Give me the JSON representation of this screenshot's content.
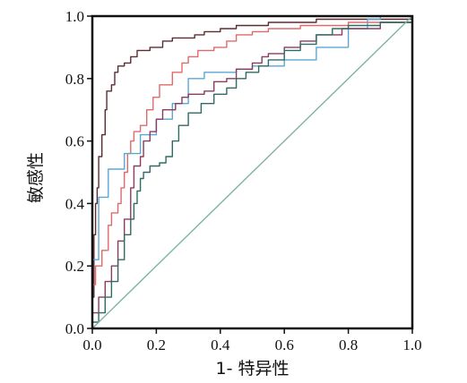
{
  "chart_data": {
    "type": "line",
    "title": "",
    "xlabel": "1- 特异性",
    "ylabel": "敏感性",
    "xlim": [
      0,
      1
    ],
    "ylim": [
      0,
      1
    ],
    "x_ticks": [
      "0.0",
      "0.2",
      "0.4",
      "0.6",
      "0.8",
      "1.0"
    ],
    "y_ticks": [
      "0.0",
      "0.2",
      "0.4",
      "0.6",
      "0.8",
      "1.0"
    ],
    "grid": false,
    "legend": "none",
    "series": [
      {
        "color": "#5a2d33",
        "points": [
          [
            0,
            0
          ],
          [
            0,
            0.1
          ],
          [
            0.005,
            0.3
          ],
          [
            0.01,
            0.4
          ],
          [
            0.015,
            0.45
          ],
          [
            0.02,
            0.55
          ],
          [
            0.03,
            0.62
          ],
          [
            0.04,
            0.7
          ],
          [
            0.045,
            0.76
          ],
          [
            0.06,
            0.78
          ],
          [
            0.07,
            0.82
          ],
          [
            0.08,
            0.84
          ],
          [
            0.1,
            0.85
          ],
          [
            0.12,
            0.87
          ],
          [
            0.14,
            0.89
          ],
          [
            0.18,
            0.9
          ],
          [
            0.22,
            0.92
          ],
          [
            0.25,
            0.93
          ],
          [
            0.32,
            0.94
          ],
          [
            0.35,
            0.95
          ],
          [
            0.4,
            0.96
          ],
          [
            0.45,
            0.97
          ],
          [
            0.55,
            0.98
          ],
          [
            0.7,
            0.99
          ],
          [
            1,
            1
          ]
        ]
      },
      {
        "color": "#e06a6a",
        "points": [
          [
            0,
            0
          ],
          [
            0,
            0.14
          ],
          [
            0.01,
            0.2
          ],
          [
            0.03,
            0.25
          ],
          [
            0.05,
            0.33
          ],
          [
            0.06,
            0.37
          ],
          [
            0.08,
            0.4
          ],
          [
            0.09,
            0.45
          ],
          [
            0.1,
            0.5
          ],
          [
            0.11,
            0.56
          ],
          [
            0.12,
            0.6
          ],
          [
            0.13,
            0.63
          ],
          [
            0.15,
            0.65
          ],
          [
            0.17,
            0.7
          ],
          [
            0.19,
            0.74
          ],
          [
            0.21,
            0.78
          ],
          [
            0.25,
            0.82
          ],
          [
            0.28,
            0.85
          ],
          [
            0.3,
            0.87
          ],
          [
            0.33,
            0.89
          ],
          [
            0.38,
            0.9
          ],
          [
            0.42,
            0.92
          ],
          [
            0.45,
            0.94
          ],
          [
            0.5,
            0.95
          ],
          [
            0.55,
            0.96
          ],
          [
            0.65,
            0.97
          ],
          [
            0.8,
            0.98
          ],
          [
            1,
            1
          ]
        ]
      },
      {
        "color": "#5ba7d4",
        "points": [
          [
            0,
            0
          ],
          [
            0,
            0.22
          ],
          [
            0.02,
            0.42
          ],
          [
            0.05,
            0.51
          ],
          [
            0.1,
            0.56
          ],
          [
            0.15,
            0.62
          ],
          [
            0.2,
            0.67
          ],
          [
            0.25,
            0.72
          ],
          [
            0.3,
            0.8
          ],
          [
            0.35,
            0.82
          ],
          [
            0.45,
            0.83
          ],
          [
            0.5,
            0.84
          ],
          [
            0.6,
            0.86
          ],
          [
            0.7,
            0.9
          ],
          [
            0.8,
            0.96
          ],
          [
            0.86,
            0.99
          ],
          [
            0.9,
            1
          ],
          [
            1,
            1
          ]
        ]
      },
      {
        "color": "#8b3a60",
        "points": [
          [
            0,
            0
          ],
          [
            0,
            0.05
          ],
          [
            0.02,
            0.1
          ],
          [
            0.04,
            0.15
          ],
          [
            0.06,
            0.2
          ],
          [
            0.08,
            0.28
          ],
          [
            0.1,
            0.35
          ],
          [
            0.12,
            0.45
          ],
          [
            0.13,
            0.52
          ],
          [
            0.15,
            0.55
          ],
          [
            0.16,
            0.6
          ],
          [
            0.18,
            0.63
          ],
          [
            0.2,
            0.67
          ],
          [
            0.22,
            0.7
          ],
          [
            0.26,
            0.72
          ],
          [
            0.28,
            0.74
          ],
          [
            0.3,
            0.75
          ],
          [
            0.35,
            0.76
          ],
          [
            0.38,
            0.79
          ],
          [
            0.42,
            0.8
          ],
          [
            0.45,
            0.83
          ],
          [
            0.5,
            0.85
          ],
          [
            0.53,
            0.87
          ],
          [
            0.55,
            0.88
          ],
          [
            0.6,
            0.9
          ],
          [
            0.65,
            0.92
          ],
          [
            0.7,
            0.94
          ],
          [
            0.78,
            0.96
          ],
          [
            0.9,
            0.98
          ],
          [
            1,
            1
          ]
        ]
      },
      {
        "color": "#2e6b64",
        "points": [
          [
            0,
            0
          ],
          [
            0,
            0.02
          ],
          [
            0.02,
            0.05
          ],
          [
            0.04,
            0.1
          ],
          [
            0.06,
            0.15
          ],
          [
            0.08,
            0.22
          ],
          [
            0.1,
            0.3
          ],
          [
            0.12,
            0.35
          ],
          [
            0.13,
            0.4
          ],
          [
            0.14,
            0.44
          ],
          [
            0.15,
            0.48
          ],
          [
            0.16,
            0.5
          ],
          [
            0.18,
            0.52
          ],
          [
            0.21,
            0.53
          ],
          [
            0.23,
            0.55
          ],
          [
            0.25,
            0.6
          ],
          [
            0.27,
            0.65
          ],
          [
            0.3,
            0.69
          ],
          [
            0.34,
            0.72
          ],
          [
            0.38,
            0.75
          ],
          [
            0.42,
            0.77
          ],
          [
            0.45,
            0.8
          ],
          [
            0.48,
            0.82
          ],
          [
            0.52,
            0.84
          ],
          [
            0.55,
            0.86
          ],
          [
            0.6,
            0.89
          ],
          [
            0.65,
            0.91
          ],
          [
            0.7,
            0.94
          ],
          [
            0.75,
            0.96
          ],
          [
            0.8,
            0.97
          ],
          [
            0.9,
            0.98
          ],
          [
            1,
            1
          ]
        ]
      },
      {
        "color": "#7fb3a7",
        "points": [
          [
            0,
            0
          ],
          [
            1,
            1
          ]
        ]
      }
    ]
  }
}
